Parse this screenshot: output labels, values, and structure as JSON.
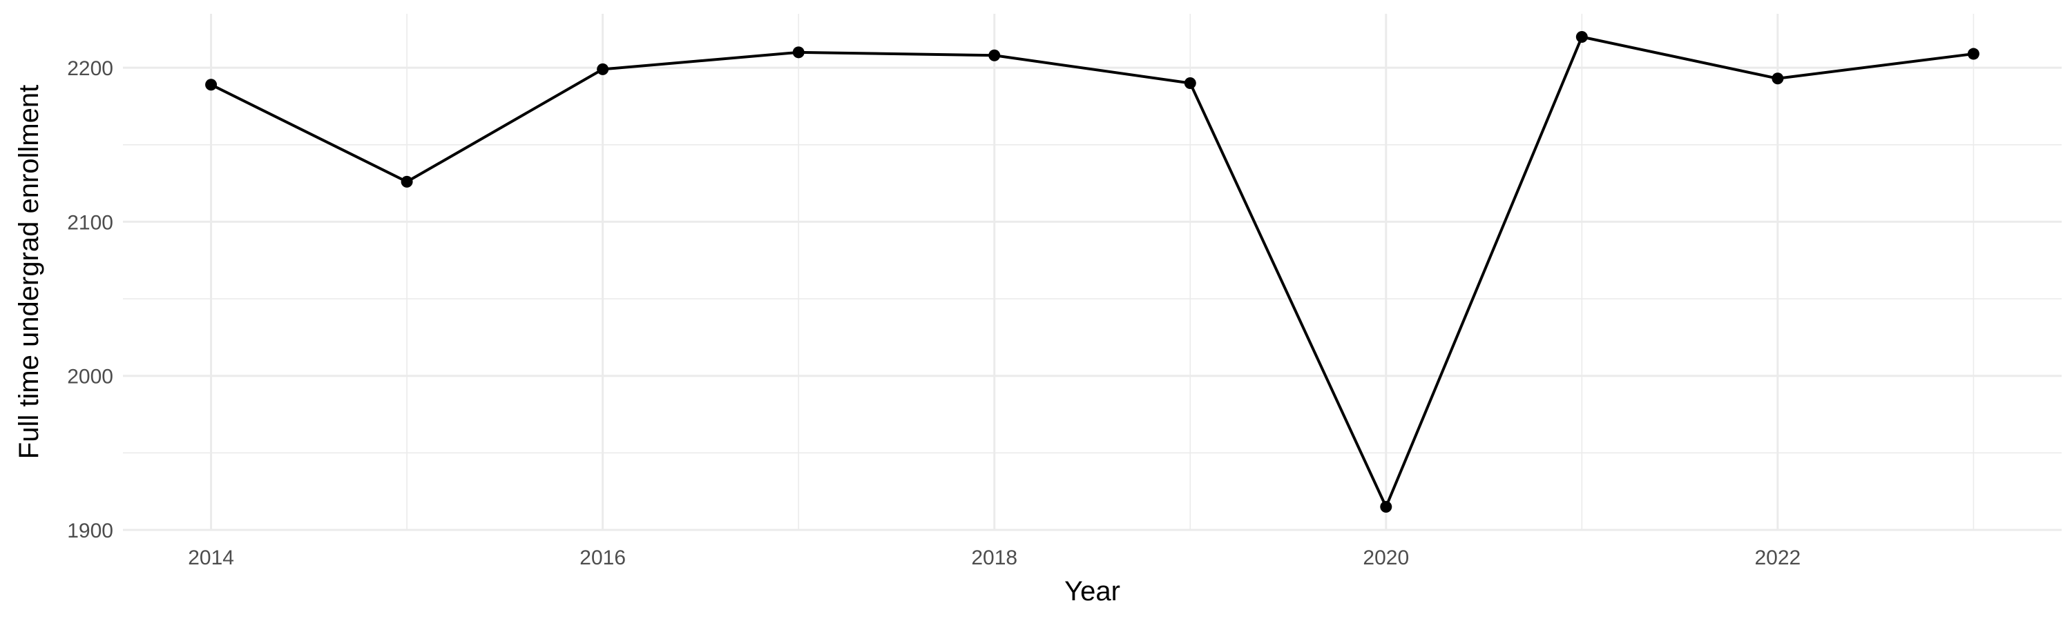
{
  "chart_data": {
    "type": "line",
    "title": "",
    "xlabel": "Year",
    "ylabel": "Full time undergrad enrollment",
    "x": [
      2014,
      2015,
      2016,
      2017,
      2018,
      2019,
      2020,
      2021,
      2022,
      2023
    ],
    "series": [
      {
        "values": [
          2189,
          2126,
          2199,
          2210,
          2208,
          2190,
          1915,
          2220,
          2193,
          2209
        ]
      }
    ],
    "xlim": [
      2013.55,
      2023.45
    ],
    "ylim": [
      1900,
      2235
    ],
    "x_ticks": [
      2014,
      2016,
      2018,
      2020,
      2022
    ],
    "x_tick_labels": [
      "2014",
      "2016",
      "2018",
      "2020",
      "2022"
    ],
    "x_minor_ticks": [
      2015,
      2017,
      2019,
      2021,
      2023
    ],
    "y_ticks": [
      1900,
      2000,
      2100,
      2200
    ],
    "y_tick_labels": [
      "1900",
      "2000",
      "2100",
      "2200"
    ],
    "y_minor_ticks": [
      1950,
      2050,
      2150
    ],
    "grid": true,
    "legend": "none",
    "colors": {
      "line": "#000000",
      "grid": "#ebebeb",
      "tick_text": "#4d4d4d",
      "background": "#ffffff"
    }
  }
}
